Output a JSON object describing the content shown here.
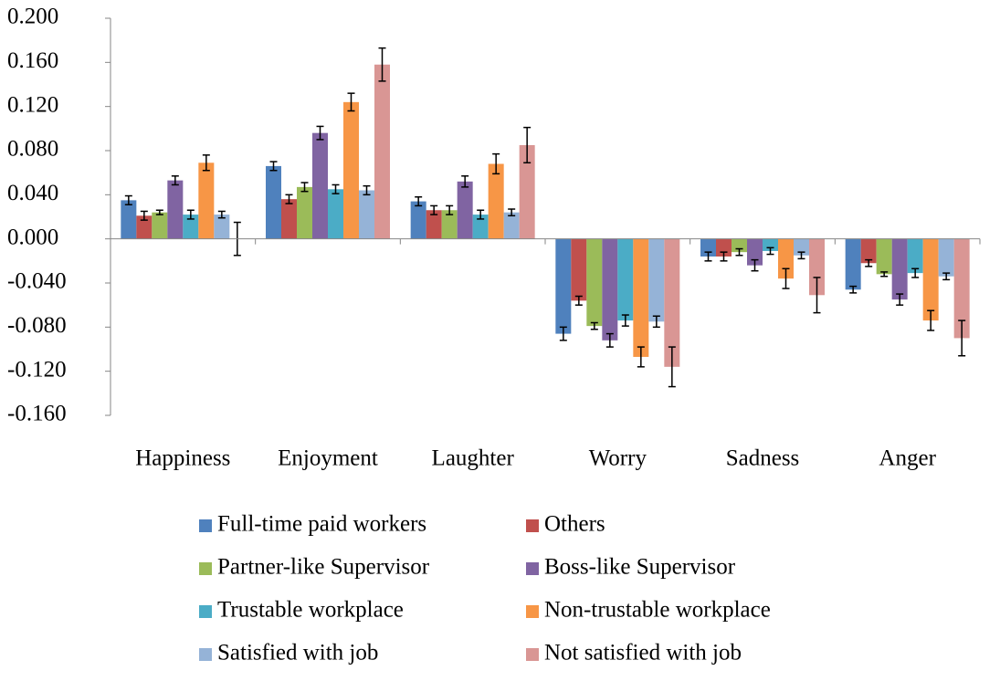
{
  "chart_data": {
    "type": "bar",
    "categories": [
      "Happiness",
      "Enjoyment",
      "Laughter",
      "Worry",
      "Sadness",
      "Anger"
    ],
    "series": [
      {
        "name": "Full-time paid workers",
        "color": "#4f81bd",
        "values": [
          0.035,
          0.066,
          0.034,
          -0.086,
          -0.016,
          -0.046
        ],
        "errors": [
          0.004,
          0.004,
          0.004,
          0.006,
          0.004,
          0.003
        ]
      },
      {
        "name": "Others",
        "color": "#c0504d",
        "values": [
          0.021,
          0.036,
          0.026,
          -0.056,
          -0.016,
          -0.022
        ],
        "errors": [
          0.004,
          0.004,
          0.004,
          0.004,
          0.004,
          0.003
        ]
      },
      {
        "name": "Partner-like Supervisor",
        "color": "#9bbb59",
        "values": [
          0.024,
          0.047,
          0.026,
          -0.079,
          -0.012,
          -0.032
        ],
        "errors": [
          0.002,
          0.004,
          0.004,
          0.003,
          0.003,
          0.002
        ]
      },
      {
        "name": "Boss-like Supervisor",
        "color": "#8064a2",
        "values": [
          0.053,
          0.096,
          0.052,
          -0.092,
          -0.024,
          -0.055
        ],
        "errors": [
          0.004,
          0.006,
          0.005,
          0.006,
          0.005,
          0.005
        ]
      },
      {
        "name": "Trustable workplace",
        "color": "#4bacc6",
        "values": [
          0.022,
          0.045,
          0.022,
          -0.074,
          -0.011,
          -0.031
        ],
        "errors": [
          0.004,
          0.004,
          0.004,
          0.005,
          0.003,
          0.004
        ]
      },
      {
        "name": "Non-trustable workplace",
        "color": "#f79646",
        "values": [
          0.069,
          0.124,
          0.068,
          -0.107,
          -0.036,
          -0.074
        ],
        "errors": [
          0.007,
          0.008,
          0.009,
          0.009,
          0.009,
          0.009
        ]
      },
      {
        "name": "Satisfied with job",
        "color": "#95b3d7",
        "values": [
          0.022,
          0.044,
          0.024,
          -0.075,
          -0.015,
          -0.034
        ],
        "errors": [
          0.003,
          0.004,
          0.003,
          0.005,
          0.003,
          0.003
        ]
      },
      {
        "name": "Not satisfied with job",
        "color": "#d99694",
        "values": [
          0.0,
          0.158,
          0.085,
          -0.116,
          -0.051,
          -0.09
        ],
        "errors": [
          0.015,
          0.015,
          0.016,
          0.018,
          0.016,
          0.016
        ]
      }
    ],
    "ylim": [
      -0.16,
      0.2
    ],
    "yticks": [
      {
        "value": -0.16,
        "label": "-0.160"
      },
      {
        "value": -0.12,
        "label": "-0.120"
      },
      {
        "value": -0.08,
        "label": "-0.080"
      },
      {
        "value": -0.04,
        "label": "-0.040"
      },
      {
        "value": 0,
        "label": "0.000"
      },
      {
        "value": 0.04,
        "label": "0.040"
      },
      {
        "value": 0.08,
        "label": "0.080"
      },
      {
        "value": 0.12,
        "label": "0.120"
      },
      {
        "value": 0.16,
        "label": "0.160"
      },
      {
        "value": 0.2,
        "label": "0.200"
      }
    ],
    "grid": false,
    "legend": "bottom"
  }
}
